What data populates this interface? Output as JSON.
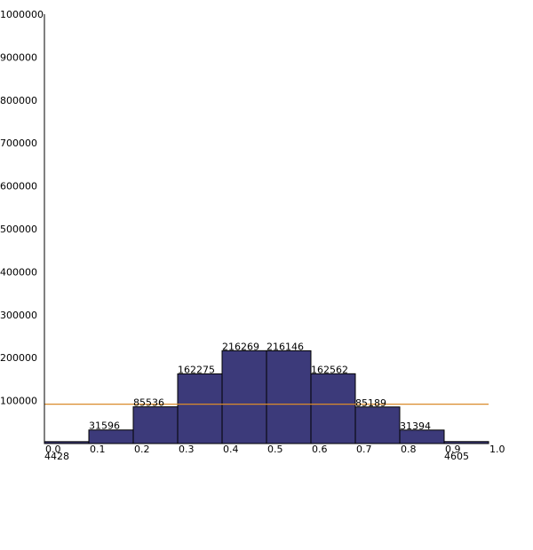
{
  "chart_data": {
    "type": "bar",
    "title": "",
    "xlabel": "",
    "ylabel": "",
    "ylim": [
      0,
      1000000
    ],
    "xlim": [
      0.0,
      1.0
    ],
    "grid": false,
    "y_ticks": [
      "100000",
      "200000",
      "300000",
      "400000",
      "500000",
      "600000",
      "700000",
      "800000",
      "900000",
      "1000000"
    ],
    "x_ticks": [
      "0.0",
      "0.1",
      "0.2",
      "0.3",
      "0.4",
      "0.5",
      "0.6",
      "0.7",
      "0.8",
      "0.9",
      "1.0"
    ],
    "bins": [
      {
        "start": 0.0,
        "end": 0.1,
        "value": 4428,
        "label": "4428"
      },
      {
        "start": 0.1,
        "end": 0.2,
        "value": 31596,
        "label": "31596"
      },
      {
        "start": 0.2,
        "end": 0.3,
        "value": 85536,
        "label": "85536"
      },
      {
        "start": 0.3,
        "end": 0.4,
        "value": 162275,
        "label": "162275"
      },
      {
        "start": 0.4,
        "end": 0.5,
        "value": 216269,
        "label": "216269"
      },
      {
        "start": 0.5,
        "end": 0.6,
        "value": 216146,
        "label": "216146"
      },
      {
        "start": 0.6,
        "end": 0.7,
        "value": 162562,
        "label": "162562"
      },
      {
        "start": 0.7,
        "end": 0.8,
        "value": 85189,
        "label": "85189"
      },
      {
        "start": 0.8,
        "end": 0.9,
        "value": 31394,
        "label": "31394"
      },
      {
        "start": 0.9,
        "end": 1.0,
        "value": 4605,
        "label": "4605"
      }
    ],
    "reference_line": {
      "value": 100000,
      "color": "#d98a2b"
    },
    "colors": {
      "bar_fill": "#3c3a7a",
      "bar_stroke": "#000000",
      "axis": "#000000"
    }
  }
}
